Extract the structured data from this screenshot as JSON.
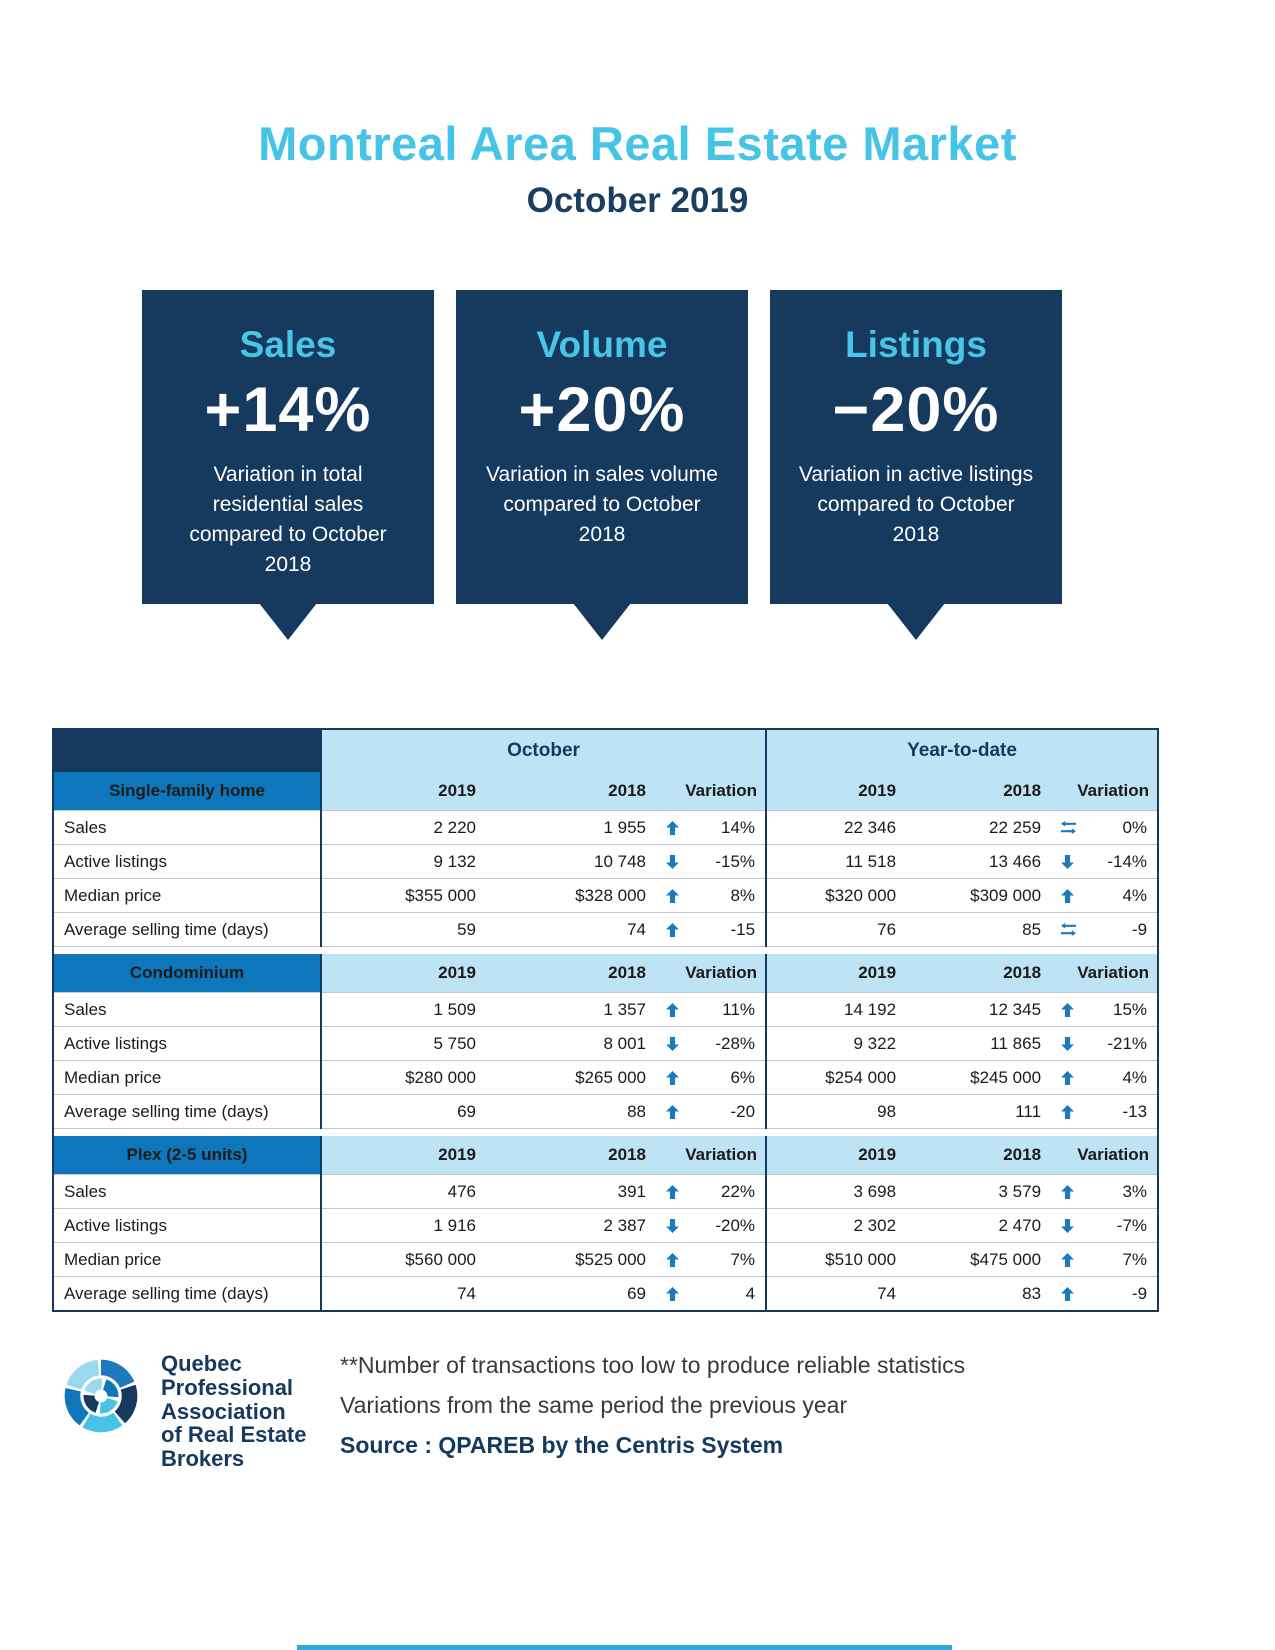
{
  "page": {
    "title": "Montreal Area Real Estate Market",
    "subtitle": "October 2019"
  },
  "colors": {
    "accent": "#45C4E6",
    "navy": "#16395E",
    "section_blue": "#0E76BB",
    "header_bg": "#BEE3F4",
    "icon_blue": "#1B79BE",
    "bottom_accent": "#2FA9DC"
  },
  "callouts": [
    {
      "label": "Sales",
      "value": "+14%",
      "description": "Variation in total residential sales compared to October 2018"
    },
    {
      "label": "Volume",
      "value": "+20%",
      "description": "Variation in sales volume compared to October 2018"
    },
    {
      "label": "Listings",
      "value": "−20%",
      "description": "Variation in active listings compared to October 2018"
    }
  ],
  "table": {
    "group_headers": [
      "October",
      "Year-to-date"
    ],
    "column_headers": [
      "2019",
      "2018",
      "Variation"
    ],
    "sections": [
      {
        "name": "Single-family home",
        "rows": [
          {
            "label": "Sales",
            "october": {
              "y2019": "2 220",
              "y2018": "1 955",
              "icon": "up",
              "variation": "14%"
            },
            "ytd": {
              "y2019": "22 346",
              "y2018": "22 259",
              "icon": "no-change",
              "variation": "0%"
            }
          },
          {
            "label": "Active listings",
            "october": {
              "y2019": "9 132",
              "y2018": "10 748",
              "icon": "down",
              "variation": "-15%"
            },
            "ytd": {
              "y2019": "11 518",
              "y2018": "13 466",
              "icon": "down",
              "variation": "-14%"
            }
          },
          {
            "label": "Median price",
            "october": {
              "y2019": "$355 000",
              "y2018": "$328 000",
              "icon": "up",
              "variation": "8%"
            },
            "ytd": {
              "y2019": "$320 000",
              "y2018": "$309 000",
              "icon": "up",
              "variation": "4%"
            }
          },
          {
            "label": "Average selling time (days)",
            "october": {
              "y2019": "59",
              "y2018": "74",
              "icon": "up",
              "variation": "-15"
            },
            "ytd": {
              "y2019": "76",
              "y2018": "85",
              "icon": "no-change",
              "variation": "-9"
            }
          }
        ]
      },
      {
        "name": "Condominium",
        "rows": [
          {
            "label": "Sales",
            "october": {
              "y2019": "1 509",
              "y2018": "1 357",
              "icon": "up",
              "variation": "11%"
            },
            "ytd": {
              "y2019": "14 192",
              "y2018": "12 345",
              "icon": "up",
              "variation": "15%"
            }
          },
          {
            "label": "Active listings",
            "october": {
              "y2019": "5 750",
              "y2018": "8 001",
              "icon": "down",
              "variation": "-28%"
            },
            "ytd": {
              "y2019": "9 322",
              "y2018": "11 865",
              "icon": "down",
              "variation": "-21%"
            }
          },
          {
            "label": "Median price",
            "october": {
              "y2019": "$280 000",
              "y2018": "$265 000",
              "icon": "up",
              "variation": "6%"
            },
            "ytd": {
              "y2019": "$254 000",
              "y2018": "$245 000",
              "icon": "up",
              "variation": "4%"
            }
          },
          {
            "label": "Average selling time (days)",
            "october": {
              "y2019": "69",
              "y2018": "88",
              "icon": "up",
              "variation": "-20"
            },
            "ytd": {
              "y2019": "98",
              "y2018": "111",
              "icon": "up",
              "variation": "-13"
            }
          }
        ]
      },
      {
        "name": "Plex (2-5 units)",
        "rows": [
          {
            "label": "Sales",
            "october": {
              "y2019": "476",
              "y2018": "391",
              "icon": "up",
              "variation": "22%"
            },
            "ytd": {
              "y2019": "3 698",
              "y2018": "3 579",
              "icon": "up",
              "variation": "3%"
            }
          },
          {
            "label": "Active listings",
            "october": {
              "y2019": "1 916",
              "y2018": "2 387",
              "icon": "down",
              "variation": "-20%"
            },
            "ytd": {
              "y2019": "2 302",
              "y2018": "2 470",
              "icon": "down",
              "variation": "-7%"
            }
          },
          {
            "label": "Median price",
            "october": {
              "y2019": "$560 000",
              "y2018": "$525 000",
              "icon": "up",
              "variation": "7%"
            },
            "ytd": {
              "y2019": "$510 000",
              "y2018": "$475 000",
              "icon": "up",
              "variation": "7%"
            }
          },
          {
            "label": "Average selling time (days)",
            "october": {
              "y2019": "74",
              "y2018": "69",
              "icon": "up",
              "variation": "4"
            },
            "ytd": {
              "y2019": "74",
              "y2018": "83",
              "icon": "up",
              "variation": "-9"
            }
          }
        ]
      }
    ]
  },
  "footer": {
    "org_lines": [
      "Quebec",
      "Professional",
      "Association",
      "of Real Estate",
      "Brokers"
    ],
    "note1": "**Number of transactions too low to produce reliable statistics",
    "note2": "Variations from the same period the previous year",
    "source": "Source : QPAREB by the Centris System"
  }
}
